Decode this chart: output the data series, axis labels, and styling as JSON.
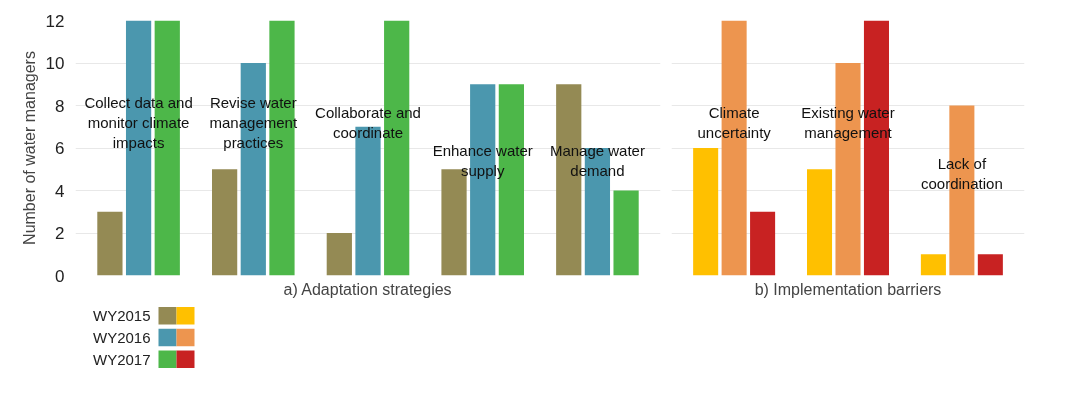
{
  "chart_data": [
    {
      "type": "bar",
      "xlabel": "a) Adaptation strategies",
      "ylabel": "Number of water managers",
      "categories": [
        "Collect data and monitor climate impacts",
        "Revise water management practices",
        "Collaborate and coordinate",
        "Enhance water supply",
        "Manage water demand"
      ],
      "series": [
        {
          "name": "WY2015",
          "color": "#948a54",
          "values": [
            3,
            5,
            2,
            5,
            9
          ]
        },
        {
          "name": "WY2016",
          "color": "#4b97ae",
          "values": [
            12,
            10,
            7,
            9,
            6
          ]
        },
        {
          "name": "WY2017",
          "color": "#4db749",
          "values": [
            12,
            12,
            12,
            9,
            4
          ]
        }
      ],
      "ylim": [
        0,
        12
      ],
      "yticks": [
        0,
        2,
        4,
        6,
        8,
        10,
        12
      ],
      "grid": "y",
      "legend": "bottom left"
    },
    {
      "type": "bar",
      "xlabel": "b) Implementation barriers",
      "categories": [
        "Climate uncertainty",
        "Existing water management",
        "Lack of coordination"
      ],
      "series": [
        {
          "color": "#ffc000",
          "values": [
            6,
            5,
            1
          ]
        },
        {
          "color": "#ed954f",
          "values": [
            12,
            10,
            8
          ]
        },
        {
          "color": "#c82222",
          "values": [
            3,
            12,
            1
          ]
        }
      ],
      "ylim": [
        0,
        12
      ],
      "yticks": [
        0,
        2,
        4,
        6,
        8,
        10,
        12
      ],
      "grid": "y",
      "tick_labels": "x"
    }
  ]
}
